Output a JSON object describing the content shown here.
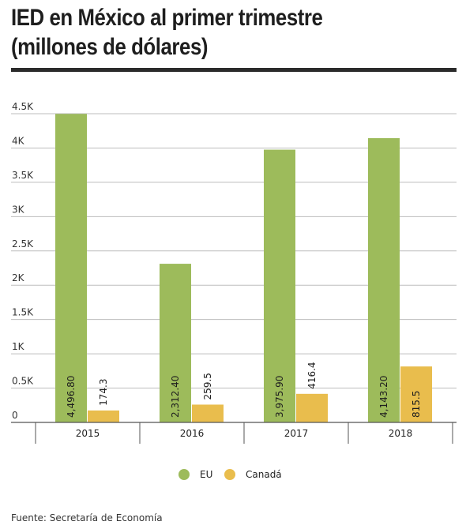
{
  "header": {
    "title_line1": "IED en México al primer trimestre",
    "title_line2": "(millones de dólares)"
  },
  "footer": {
    "source": "Fuente: Secretaría de Economía"
  },
  "colors": {
    "eu": "#9dbb5b",
    "canada": "#e9bd4d",
    "grid": "#bdbdbd",
    "axis": "#555555"
  },
  "chart_data": {
    "type": "bar",
    "categories": [
      "2015",
      "2016",
      "2017",
      "2018"
    ],
    "series": [
      {
        "name": "EU",
        "values": [
          4496.8,
          2312.4,
          3975.9,
          4143.2
        ],
        "labels": [
          "4,496.80",
          "2,312.40",
          "3,975.90",
          "4,143.20"
        ]
      },
      {
        "name": "Canadá",
        "values": [
          174.3,
          259.5,
          416.4,
          815.5
        ],
        "labels": [
          "174.3",
          "259.5",
          "416.4",
          "815.5"
        ]
      }
    ],
    "yticks": [
      0,
      500,
      1000,
      1500,
      2000,
      2500,
      3000,
      3500,
      4000,
      4500
    ],
    "ytick_labels": [
      "0",
      "0.5K",
      "1K",
      "1.5K",
      "2K",
      "2.5K",
      "3K",
      "3.5K",
      "4K",
      "4.5K"
    ],
    "ylim": [
      0,
      4500
    ],
    "grid": true,
    "legend_position": "bottom-center",
    "title": "IED en México al primer trimestre (millones de dólares)",
    "xlabel": "",
    "ylabel": ""
  }
}
